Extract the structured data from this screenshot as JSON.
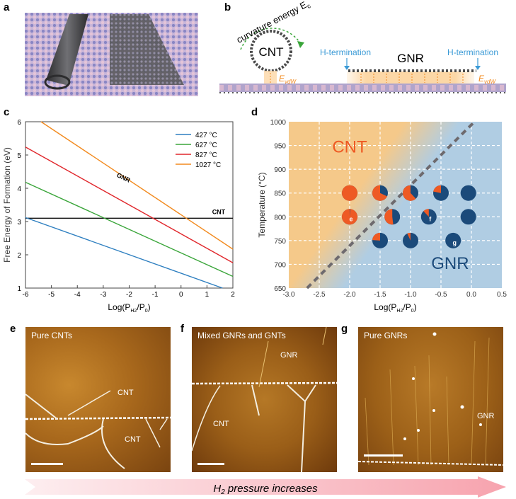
{
  "panels": {
    "a": {
      "label": "a"
    },
    "b": {
      "label": "b",
      "curvature_text": "curvature energy E",
      "curvature_sub": "c",
      "cnt_text": "CNT",
      "gnr_text": "GNR",
      "hterm_left": "H-termination",
      "hterm_right": "H-termination",
      "evdw": "E",
      "evdw_sub": "vdW"
    },
    "c": {
      "label": "c"
    },
    "d": {
      "label": "d"
    },
    "e": {
      "label": "e",
      "caption": "Pure CNTs",
      "annotations": [
        "CNT",
        "CNT"
      ]
    },
    "f": {
      "label": "f",
      "caption": "Mixed GNRs and GNTs",
      "annotations": [
        "GNR",
        "CNT"
      ]
    },
    "g": {
      "label": "g",
      "caption": "Pure GNRs",
      "annotations": [
        "GNR"
      ]
    }
  },
  "arrow": {
    "text_main": "H",
    "text_sub": "2",
    "text_rest": " pressure increases"
  },
  "colors": {
    "t427": "#2e7fc0",
    "t627": "#3aa53a",
    "t827": "#e0262b",
    "t1027": "#f28a1e",
    "cnt_region": "#f5c98a",
    "gnr_region": "#b0cde3",
    "cnt_pie": "#ee5a24",
    "gnr_pie": "#1b4a7a"
  },
  "chart_data": [
    {
      "type": "line",
      "title": "",
      "xlabel": "Log(P_H2/P_0)",
      "ylabel": "Free Energy of Formation (eV)",
      "xlim": [
        -6,
        2
      ],
      "ylim": [
        1,
        6
      ],
      "xticks": [
        -6,
        -5,
        -4,
        -3,
        -2,
        -1,
        0,
        1,
        2
      ],
      "yticks": [
        1,
        2,
        3,
        4,
        5,
        6
      ],
      "legend_position": "top-right",
      "series": [
        {
          "name": "427 °C",
          "color_key": "t427",
          "x": [
            -6,
            1.6
          ],
          "y": [
            3.12,
            1.0
          ]
        },
        {
          "name": "627 °C",
          "color_key": "t627",
          "x": [
            -6,
            2
          ],
          "y": [
            4.18,
            1.35
          ]
        },
        {
          "name": "827 °C",
          "color_key": "t827",
          "x": [
            -6,
            2
          ],
          "y": [
            5.24,
            1.76
          ]
        },
        {
          "name": "1027 °C",
          "color_key": "t1027",
          "x": [
            -5.4,
            2
          ],
          "y": [
            6.0,
            2.17
          ]
        }
      ],
      "reference_line": {
        "name": "CNT",
        "y": 3.1
      },
      "annotations": [
        {
          "text": "GNR",
          "x": -2.5,
          "y": 4.35
        },
        {
          "text": "CNT",
          "x": 1.2,
          "y": 3.22
        }
      ]
    },
    {
      "type": "scatter",
      "title": "",
      "xlabel": "Log(P_H2/P_0)",
      "ylabel": "Temperature (°C)",
      "xlim": [
        -3.0,
        0.5
      ],
      "ylim": [
        650,
        1000
      ],
      "xticks": [
        -3.0,
        -2.5,
        -2.0,
        -1.5,
        -1.0,
        -0.5,
        0.0,
        0.5
      ],
      "xtick_labels": [
        "-3.0",
        "-2.5",
        "-2.0",
        "-1.5",
        "-1.0",
        "-0.5",
        "0.0",
        "0.5"
      ],
      "yticks": [
        650,
        700,
        750,
        800,
        850,
        900,
        950,
        1000
      ],
      "grid": true,
      "region_labels": [
        {
          "text": "CNT",
          "x": -2.0,
          "y": 935
        },
        {
          "text": "GNR",
          "x": -0.35,
          "y": 690
        }
      ],
      "boundary": {
        "x": [
          -2.7,
          0.05
        ],
        "y": [
          650,
          1000
        ]
      },
      "points": [
        {
          "x": -2.0,
          "y": 850,
          "cnt_fraction": 1.0,
          "tag": ""
        },
        {
          "x": -1.5,
          "y": 850,
          "cnt_fraction": 0.68,
          "tag": ""
        },
        {
          "x": -1.0,
          "y": 850,
          "cnt_fraction": 0.62,
          "tag": ""
        },
        {
          "x": -0.5,
          "y": 850,
          "cnt_fraction": 0.22,
          "tag": ""
        },
        {
          "x": -0.05,
          "y": 850,
          "cnt_fraction": 0.0,
          "tag": ""
        },
        {
          "x": -2.0,
          "y": 800,
          "cnt_fraction": 0.99,
          "tag": "e"
        },
        {
          "x": -1.3,
          "y": 800,
          "cnt_fraction": 0.52,
          "tag": ""
        },
        {
          "x": -0.7,
          "y": 800,
          "cnt_fraction": 0.12,
          "tag": "f"
        },
        {
          "x": -0.05,
          "y": 800,
          "cnt_fraction": 0.0,
          "tag": ""
        },
        {
          "x": -1.5,
          "y": 750,
          "cnt_fraction": 0.24,
          "tag": ""
        },
        {
          "x": -1.0,
          "y": 750,
          "cnt_fraction": 0.07,
          "tag": ""
        },
        {
          "x": -0.3,
          "y": 750,
          "cnt_fraction": 0.0,
          "tag": "g"
        }
      ]
    }
  ]
}
